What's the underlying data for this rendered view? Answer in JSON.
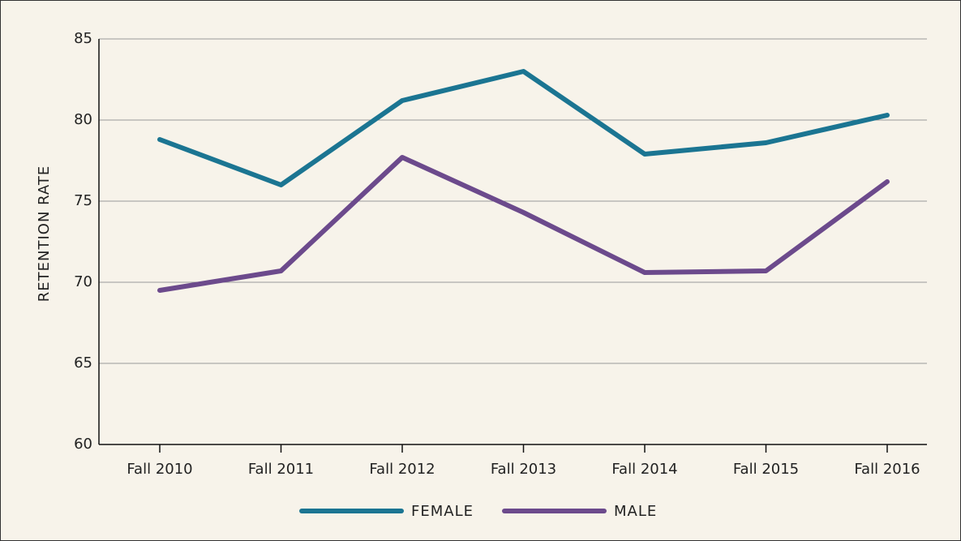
{
  "chart_data": {
    "type": "line",
    "y_label": "RETENTION RATE",
    "categories": [
      "Fall 2010",
      "Fall 2011",
      "Fall 2012",
      "Fall 2013",
      "Fall 2014",
      "Fall 2015",
      "Fall 2016"
    ],
    "series": [
      {
        "name": "FEMALE",
        "color": "#1b7592",
        "values": [
          78.8,
          76.0,
          81.2,
          83.0,
          77.9,
          78.6,
          80.3
        ]
      },
      {
        "name": "MALE",
        "color": "#6c4a8c",
        "values": [
          69.5,
          70.7,
          77.7,
          74.3,
          70.6,
          70.7,
          76.2
        ]
      }
    ],
    "ylim": [
      60,
      85
    ],
    "yticks": [
      60,
      65,
      70,
      75,
      80,
      85
    ],
    "grid": true
  }
}
